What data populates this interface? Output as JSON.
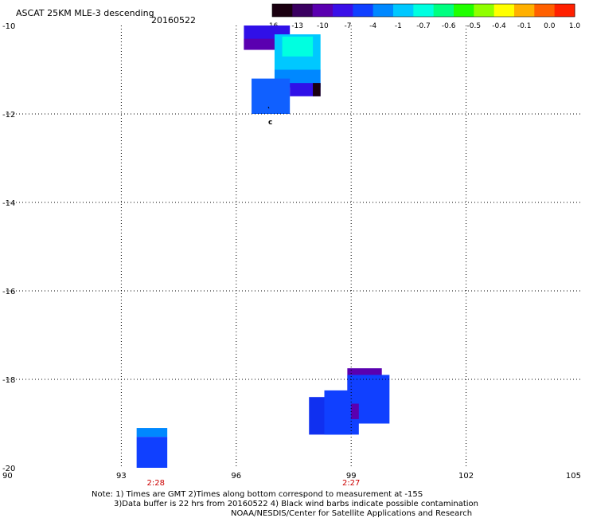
{
  "header": {
    "title": "ASCAT 25KM MLE-3 descending",
    "date": "20160522"
  },
  "colorbar": {
    "labels": [
      "-16",
      "-13",
      "-10",
      "-7",
      "-4",
      "-1",
      "-0.7",
      "-0.6",
      "-0.5",
      "-0.4",
      "-0.1",
      "0.0",
      "1.0"
    ],
    "colors": [
      "#1a0010",
      "#3a0060",
      "#5a00b0",
      "#3a10e8",
      "#1040ff",
      "#0088ff",
      "#00c8ff",
      "#00ffe0",
      "#00ff80",
      "#20ff00",
      "#90ff00",
      "#ffff00",
      "#ffb000",
      "#ff6000",
      "#ff2000"
    ]
  },
  "map": {
    "lon_range": [
      90,
      105
    ],
    "lat_range": [
      -20,
      -10
    ],
    "x_ticks": [
      "90",
      "93",
      "96",
      "99",
      "102",
      "105"
    ],
    "y_ticks": [
      "-10",
      "-12",
      "-14",
      "-16",
      "-18",
      "-20"
    ],
    "time_labels": [
      {
        "text": "2:28",
        "lon": 93.9
      },
      {
        "text": "2:27",
        "lon": 99.0
      }
    ],
    "marker_text": "c",
    "grid": true,
    "cells": [
      {
        "lon0": 96.2,
        "lon1": 97.4,
        "lat0": -10.55,
        "lat1": -10.0,
        "color": "#3010e8"
      },
      {
        "lon0": 96.2,
        "lon1": 97.0,
        "lat0": -10.55,
        "lat1": -10.3,
        "color": "#5a00b0"
      },
      {
        "lon0": 97.0,
        "lon1": 98.2,
        "lat0": -11.0,
        "lat1": -10.2,
        "color": "#00c8ff"
      },
      {
        "lon0": 97.2,
        "lon1": 98.0,
        "lat0": -10.7,
        "lat1": -10.25,
        "color": "#00ffe0"
      },
      {
        "lon0": 97.0,
        "lon1": 98.2,
        "lat0": -11.4,
        "lat1": -11.0,
        "color": "#0088ff"
      },
      {
        "lon0": 96.4,
        "lon1": 97.4,
        "lat0": -12.0,
        "lat1": -11.2,
        "color": "#1060ff"
      },
      {
        "lon0": 97.4,
        "lon1": 98.2,
        "lat0": -11.6,
        "lat1": -11.3,
        "color": "#3010e8"
      },
      {
        "lon0": 98.0,
        "lon1": 98.2,
        "lat0": -11.6,
        "lat1": -11.3,
        "color": "#1a0010"
      },
      {
        "lon0": 98.9,
        "lon1": 99.8,
        "lat0": -18.55,
        "lat1": -17.75,
        "color": "#5a00b0"
      },
      {
        "lon0": 98.9,
        "lon1": 100.0,
        "lat0": -19.0,
        "lat1": -17.9,
        "color": "#1040ff"
      },
      {
        "lon0": 97.9,
        "lon1": 99.0,
        "lat0": -19.25,
        "lat1": -18.4,
        "color": "#1030f0"
      },
      {
        "lon0": 98.3,
        "lon1": 99.2,
        "lat0": -19.25,
        "lat1": -18.25,
        "color": "#1040ff"
      },
      {
        "lon0": 99.0,
        "lon1": 99.2,
        "lat0": -18.9,
        "lat1": -18.55,
        "color": "#5a00b0"
      },
      {
        "lon0": 93.4,
        "lon1": 94.2,
        "lat0": -19.3,
        "lat1": -19.1,
        "color": "#0088ff"
      },
      {
        "lon0": 93.4,
        "lon1": 94.2,
        "lat0": -20.0,
        "lat1": -19.3,
        "color": "#1040ff"
      }
    ]
  },
  "footer": {
    "line1": "Note: 1) Times are GMT 2)Times along bottom correspond to measurement at -15S",
    "line2": "3)Data buffer is 22 hrs from 20160522 4) Black wind barbs indicate possible contamination",
    "line3": "NOAA/NESDIS/Center for Satellite Applications and Research"
  }
}
